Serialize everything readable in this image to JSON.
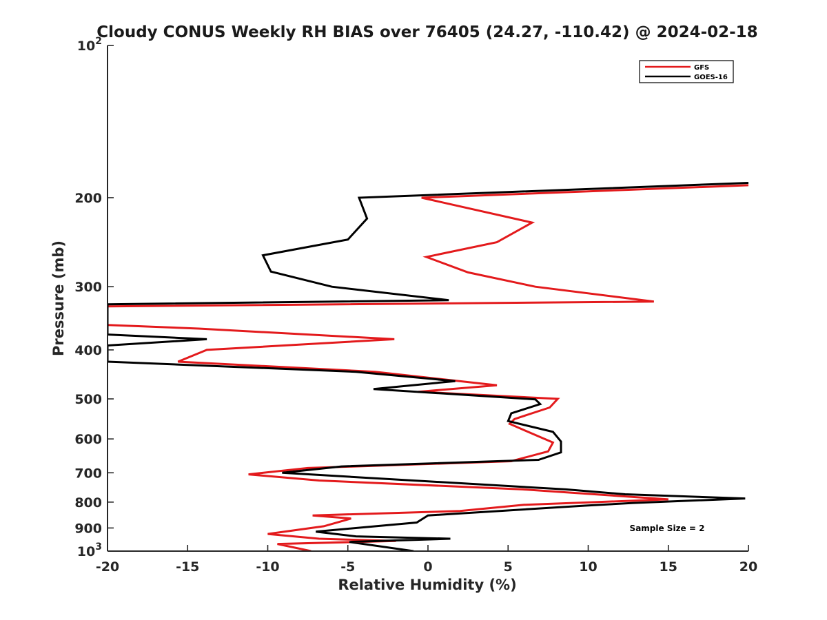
{
  "chart_data": {
    "type": "line",
    "title": "Cloudy CONUS Weekly RH BIAS over 76405 (24.27, -110.42) @ 2024-02-18",
    "xlabel": "Relative Humidity (%)",
    "ylabel": "Pressure (mb)",
    "xlim": [
      -20,
      20
    ],
    "ylim": [
      100,
      1000
    ],
    "y_scale": "log",
    "y_reversed": true,
    "x_ticks": [
      "-20",
      "-15",
      "-10",
      "-5",
      "0",
      "5",
      "10",
      "15",
      "20"
    ],
    "x_tick_values": [
      -20,
      -15,
      -10,
      -5,
      0,
      5,
      10,
      15,
      20
    ],
    "y_ticks": [
      {
        "value": 100,
        "base": "10",
        "exp": "2"
      },
      {
        "value": 200,
        "label": "200"
      },
      {
        "value": 300,
        "label": "300"
      },
      {
        "value": 400,
        "label": "400"
      },
      {
        "value": 500,
        "label": "500"
      },
      {
        "value": 600,
        "label": "600"
      },
      {
        "value": 700,
        "label": "700"
      },
      {
        "value": 800,
        "label": "800"
      },
      {
        "value": 900,
        "label": "900"
      },
      {
        "value": 1000,
        "base": "10",
        "exp": "3"
      }
    ],
    "legend_position": "top-right",
    "annotation": "Sample Size = 2",
    "series": [
      {
        "name": "GFS",
        "color": "#e31a1c",
        "points": [
          [
            20,
            189
          ],
          [
            -0.4,
            200
          ],
          [
            6.5,
            224
          ],
          [
            4.3,
            245
          ],
          [
            -0.1,
            262
          ],
          [
            2.5,
            281
          ],
          [
            6.7,
            300
          ],
          [
            14.1,
            321
          ],
          [
            -20,
            328
          ],
          [
            -20,
            357
          ],
          [
            -14.3,
            363
          ],
          [
            -2.1,
            381
          ],
          [
            -13.8,
            400
          ],
          [
            -15.6,
            422
          ],
          [
            -3.3,
            442
          ],
          [
            4.3,
            470
          ],
          [
            -0.6,
            484
          ],
          [
            8.1,
            500
          ],
          [
            7.6,
            520
          ],
          [
            5.4,
            548
          ],
          [
            5.1,
            560
          ],
          [
            6.2,
            580
          ],
          [
            7.8,
            610
          ],
          [
            7.5,
            635
          ],
          [
            5.2,
            664
          ],
          [
            -7.5,
            685
          ],
          [
            -11.2,
            705
          ],
          [
            -6.8,
            725
          ],
          [
            5.9,
            755
          ],
          [
            15.0,
            790
          ],
          [
            6.0,
            810
          ],
          [
            2.0,
            833
          ],
          [
            -7.2,
            850
          ],
          [
            -4.8,
            862
          ],
          [
            -6.5,
            893
          ],
          [
            -10.0,
            925
          ],
          [
            -6.8,
            945
          ],
          [
            -2.0,
            955
          ],
          [
            -9.4,
            968
          ],
          [
            -7.3,
            1000
          ]
        ]
      },
      {
        "name": "GOES-16",
        "color": "#000000",
        "points": [
          [
            20,
            187
          ],
          [
            -4.3,
            200
          ],
          [
            -3.8,
            220
          ],
          [
            -5.0,
            242
          ],
          [
            -10.3,
            260
          ],
          [
            -9.8,
            280
          ],
          [
            -6.0,
            300
          ],
          [
            1.3,
            319
          ],
          [
            -20,
            325
          ],
          [
            -20,
            373
          ],
          [
            -13.8,
            381
          ],
          [
            -20,
            392
          ],
          [
            -20,
            422
          ],
          [
            -4.5,
            442
          ],
          [
            1.7,
            461
          ],
          [
            -3.4,
            478
          ],
          [
            6.7,
            501
          ],
          [
            7.0,
            512
          ],
          [
            5.2,
            534
          ],
          [
            5.0,
            553
          ],
          [
            7.8,
            581
          ],
          [
            8.3,
            607
          ],
          [
            8.3,
            638
          ],
          [
            6.9,
            660
          ],
          [
            -5.4,
            680
          ],
          [
            -9.1,
            700
          ],
          [
            -4.8,
            713
          ],
          [
            8.6,
            755
          ],
          [
            12.3,
            772
          ],
          [
            19.8,
            787
          ],
          [
            12.8,
            803
          ],
          [
            9.8,
            813
          ],
          [
            1.8,
            843
          ],
          [
            0.0,
            850
          ],
          [
            -0.7,
            878
          ],
          [
            -7.0,
            915
          ],
          [
            -4.5,
            935
          ],
          [
            1.4,
            945
          ],
          [
            -4.9,
            959
          ],
          [
            -0.9,
            1000
          ]
        ]
      }
    ]
  }
}
